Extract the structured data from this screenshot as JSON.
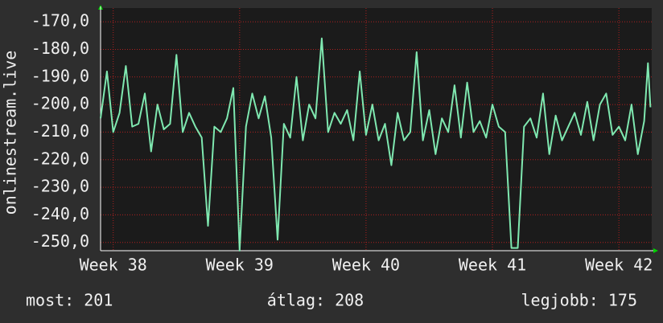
{
  "chart_data": {
    "type": "line",
    "ylabel": "onlinestream.live",
    "ylim": [
      -253,
      -165
    ],
    "yticks": [
      {
        "value": -170,
        "label": "-170,0"
      },
      {
        "value": -180,
        "label": "-180,0"
      },
      {
        "value": -190,
        "label": "-190,0"
      },
      {
        "value": -200,
        "label": "-200,0"
      },
      {
        "value": -210,
        "label": "-210,0"
      },
      {
        "value": -220,
        "label": "-220,0"
      },
      {
        "value": -230,
        "label": "-230,0"
      },
      {
        "value": -240,
        "label": "-240,0"
      },
      {
        "value": -250,
        "label": "-250,0"
      }
    ],
    "xlim": [
      37.9,
      42.26
    ],
    "xticks": [
      {
        "value": 38,
        "label": "Week 38"
      },
      {
        "value": 39,
        "label": "Week 39"
      },
      {
        "value": 40,
        "label": "Week 40"
      },
      {
        "value": 41,
        "label": "Week 41"
      },
      {
        "value": 42,
        "label": "Week 42"
      }
    ],
    "grid": true,
    "series": [
      {
        "color": "#7fe8b0",
        "x": [
          37.9,
          37.95,
          38.0,
          38.05,
          38.1,
          38.15,
          38.2,
          38.25,
          38.3,
          38.35,
          38.4,
          38.45,
          38.5,
          38.55,
          38.6,
          38.65,
          38.7,
          38.75,
          38.8,
          38.85,
          38.9,
          38.95,
          39.0,
          39.05,
          39.1,
          39.15,
          39.2,
          39.25,
          39.3,
          39.35,
          39.4,
          39.45,
          39.5,
          39.55,
          39.6,
          39.65,
          39.7,
          39.75,
          39.8,
          39.85,
          39.9,
          39.95,
          40.0,
          40.05,
          40.1,
          40.15,
          40.2,
          40.25,
          40.3,
          40.35,
          40.4,
          40.45,
          40.5,
          40.55,
          40.6,
          40.65,
          40.7,
          40.75,
          40.8,
          40.85,
          40.9,
          40.95,
          41.0,
          41.05,
          41.1,
          41.15,
          41.2,
          41.25,
          41.3,
          41.35,
          41.4,
          41.45,
          41.5,
          41.55,
          41.6,
          41.65,
          41.7,
          41.75,
          41.8,
          41.85,
          41.9,
          41.95,
          42.0,
          42.05,
          42.1,
          42.15,
          42.2,
          42.23,
          42.25
        ],
        "values": [
          -205,
          -188,
          -210,
          -203,
          -186,
          -208,
          -207,
          -196,
          -217,
          -200,
          -209,
          -207,
          -182,
          -210,
          -203,
          -208,
          -212,
          -244,
          -208,
          -210,
          -205,
          -194,
          -253,
          -208,
          -196,
          -205,
          -197,
          -212,
          -249,
          -207,
          -212,
          -190,
          -213,
          -200,
          -205,
          -176,
          -210,
          -203,
          -207,
          -202,
          -213,
          -188,
          -211,
          -200,
          -213,
          -207,
          -222,
          -203,
          -213,
          -210,
          -181,
          -213,
          -202,
          -218,
          -205,
          -210,
          -193,
          -212,
          -192,
          -210,
          -206,
          -212,
          -200,
          -208,
          -210,
          -252,
          -252,
          -208,
          -205,
          -212,
          -196,
          -218,
          -204,
          -213,
          -208,
          -203,
          -211,
          -199,
          -213,
          -200,
          -196,
          -211,
          -208,
          -213,
          -200,
          -218,
          -206,
          -185,
          -201
        ]
      }
    ],
    "stats": [
      "most: 201",
      "átlag: 208",
      "legjobb: 175"
    ]
  }
}
